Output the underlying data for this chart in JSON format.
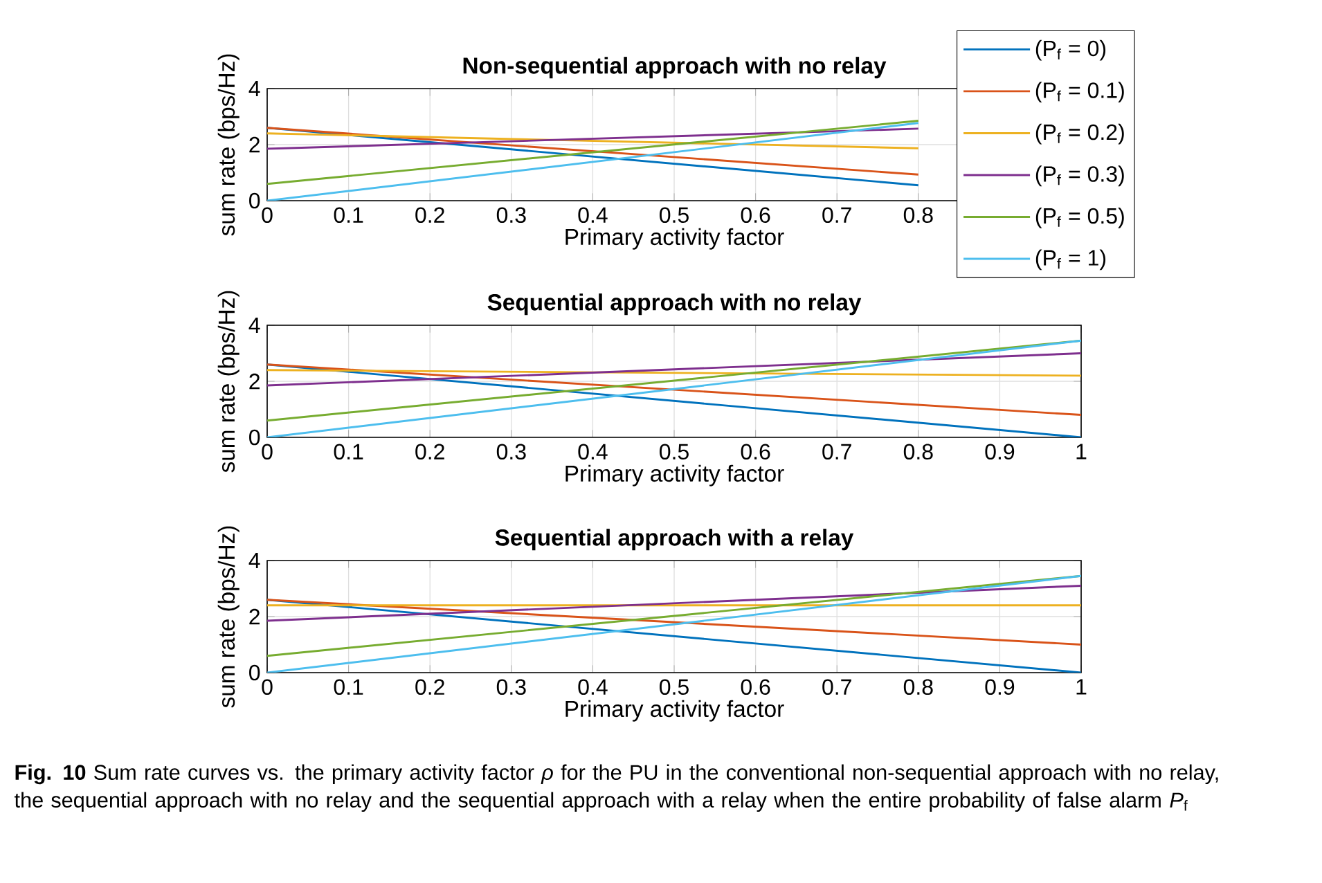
{
  "chart_data": [
    {
      "type": "line",
      "title": "Non-sequential approach with no relay",
      "xlabel": "Primary activity factor",
      "ylabel": "sum rate (bps/Hz)",
      "xlim": [
        0,
        1
      ],
      "ylim": [
        0,
        4
      ],
      "xticks": [
        0,
        0.1,
        0.2,
        0.3,
        0.4,
        0.5,
        0.6,
        0.7,
        0.8
      ],
      "yticks": [
        0,
        2,
        4
      ],
      "grid": true,
      "legend": "right",
      "marker": "none",
      "line_style": "solid",
      "x": [
        0,
        0.8
      ],
      "series": [
        {
          "name": "(P$_{f}$ = 0)",
          "color": "#0072bd",
          "values": [
            2.6,
            0.55
          ]
        },
        {
          "name": "(P$_{f}$ = 0.1)",
          "color": "#d95319",
          "values": [
            2.6,
            0.93
          ]
        },
        {
          "name": "(P$_{f}$ = 0.2)",
          "color": "#edb120",
          "values": [
            2.4,
            1.87
          ]
        },
        {
          "name": "(P$_{f}$ = 0.3)",
          "color": "#7e2f8e",
          "values": [
            1.85,
            2.57
          ]
        },
        {
          "name": "(P$_{f}$ = 0.5)",
          "color": "#77ac30",
          "values": [
            0.6,
            2.85
          ]
        },
        {
          "name": "(P$_{f}$ = 1)",
          "color": "#4dbeee",
          "values": [
            0,
            2.77
          ]
        }
      ]
    },
    {
      "type": "line",
      "title": "Sequential approach with no relay",
      "xlabel": "Primary activity factor",
      "ylabel": "sum rate (bps/Hz)",
      "xlim": [
        0,
        1
      ],
      "ylim": [
        0,
        4
      ],
      "xticks": [
        0,
        0.1,
        0.2,
        0.3,
        0.4,
        0.5,
        0.6,
        0.7,
        0.8,
        0.9,
        1
      ],
      "yticks": [
        0,
        2,
        4
      ],
      "grid": true,
      "marker": "none",
      "line_style": "solid",
      "x": [
        0,
        1
      ],
      "series": [
        {
          "color": "#0072bd",
          "values": [
            2.6,
            0
          ]
        },
        {
          "color": "#d95319",
          "values": [
            2.6,
            0.8
          ]
        },
        {
          "color": "#edb120",
          "values": [
            2.4,
            2.2
          ]
        },
        {
          "color": "#7e2f8e",
          "values": [
            1.85,
            3.0
          ]
        },
        {
          "color": "#77ac30",
          "values": [
            0.6,
            3.45
          ]
        },
        {
          "color": "#4dbeee",
          "values": [
            0,
            3.45
          ]
        }
      ]
    },
    {
      "type": "line",
      "title": "Sequential approach with a relay",
      "xlabel": "Primary activity factor",
      "ylabel": "sum rate (bps/Hz)",
      "xlim": [
        0,
        1
      ],
      "ylim": [
        0,
        4
      ],
      "xticks": [
        0,
        0.1,
        0.2,
        0.3,
        0.4,
        0.5,
        0.6,
        0.7,
        0.8,
        0.9,
        1
      ],
      "yticks": [
        0,
        2,
        4
      ],
      "grid": true,
      "marker": "none",
      "line_style": "solid",
      "x": [
        0,
        1
      ],
      "series": [
        {
          "color": "#0072bd",
          "values": [
            2.6,
            0
          ]
        },
        {
          "color": "#d95319",
          "values": [
            2.6,
            1.0
          ]
        },
        {
          "color": "#edb120",
          "values": [
            2.4,
            2.4
          ]
        },
        {
          "color": "#7e2f8e",
          "values": [
            1.85,
            3.1
          ]
        },
        {
          "color": "#77ac30",
          "values": [
            0.6,
            3.45
          ]
        },
        {
          "color": "#4dbeee",
          "values": [
            0,
            3.45
          ]
        }
      ],
      "annotations": [
        "**Fig. 10** Sum rate curves vs. the primary activity factor *ρ* for the PU in the conventional non-sequential approach with no relay, the sequential approach with no relay and the sequential approach with a relay when the entire probability of false alarm *P*$_{f}$"
      ]
    }
  ]
}
